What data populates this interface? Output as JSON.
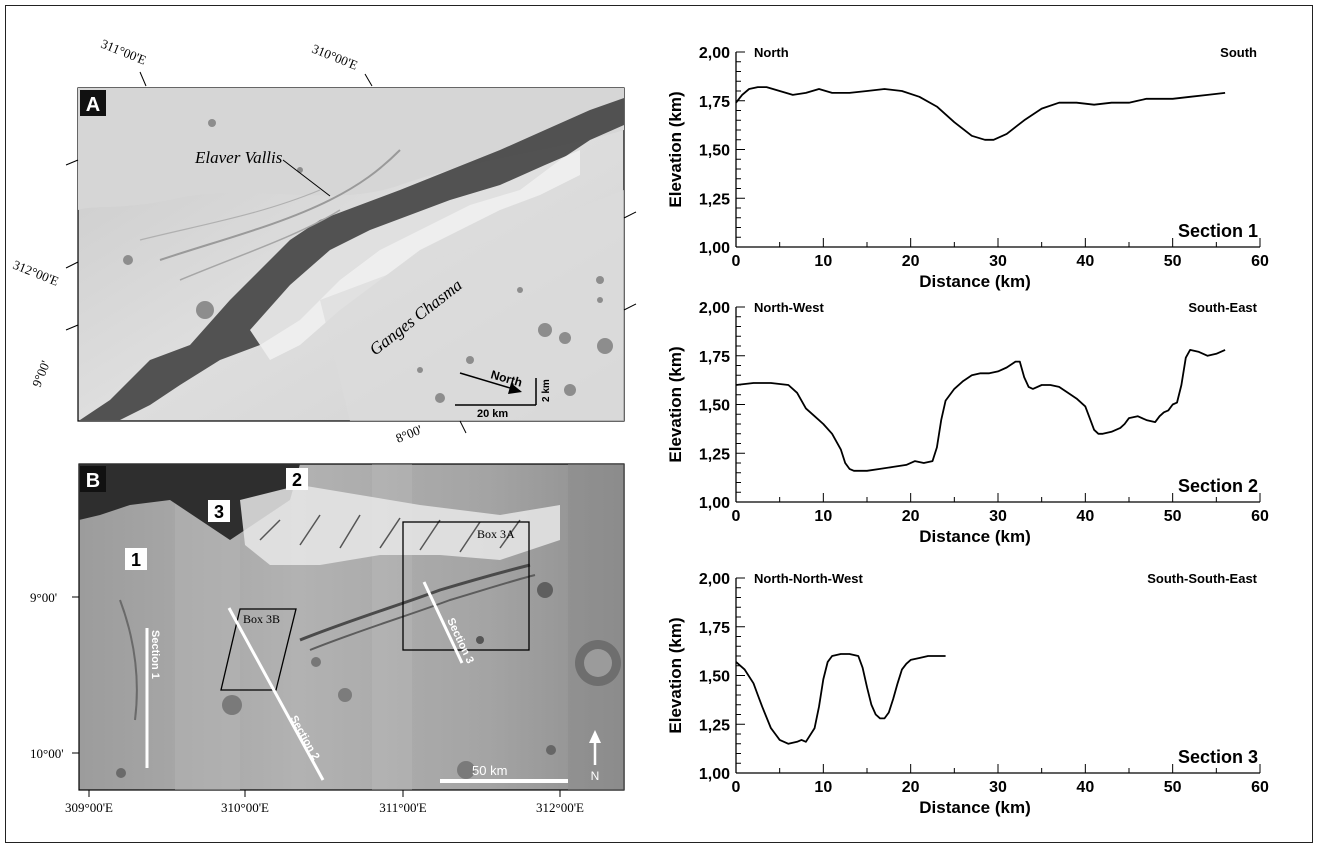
{
  "panel_a": {
    "label": "A",
    "lon_labels": [
      "311°00'E",
      "310°00'E",
      "312°00'E"
    ],
    "lat_labels": [
      "9°00'",
      "8°00'"
    ],
    "feature_labels": [
      "Elaver Vallis",
      "Ganges Chasma"
    ],
    "north_label": "North",
    "scale_horizontal": "20 km",
    "scale_vertical": "2 km"
  },
  "panel_b": {
    "label": "B",
    "site_labels": [
      "1",
      "2",
      "3"
    ],
    "box_labels": [
      "Box 3A",
      "Box 3B"
    ],
    "section_labels": [
      "Section 1",
      "Section 2",
      "Section 3"
    ],
    "lat_labels": [
      "9°00'",
      "10°00'"
    ],
    "lon_labels": [
      "309°00'E",
      "310°00'E",
      "311°00'E",
      "312°00'E"
    ],
    "scale_label": "50 km",
    "north_label": "N"
  },
  "colors": {
    "terrain_light": "#dcdcdc",
    "terrain_mid": "#a8a8a8",
    "terrain_dark": "#2a2a2a",
    "profile_line": "#000000"
  },
  "chart_data": [
    {
      "type": "line",
      "title": "Section 1",
      "xlabel": "Distance (km)",
      "ylabel": "Elevation (km)",
      "xlim": [
        0,
        60
      ],
      "ylim": [
        1.0,
        2.0
      ],
      "x_ticks": [
        "0",
        "10",
        "20",
        "30",
        "40",
        "50",
        "60"
      ],
      "y_ticks": [
        "1,00",
        "1,25",
        "1,50",
        "1,75",
        "2,00"
      ],
      "start_label": "North",
      "end_label": "South",
      "x": [
        0,
        0.7,
        1.5,
        2.5,
        3.5,
        5,
        6.5,
        8,
        9.5,
        11,
        13,
        15,
        17,
        19,
        21,
        23,
        25,
        27,
        28.5,
        29.5,
        31,
        33,
        35,
        37,
        39,
        41,
        43,
        44,
        45,
        46,
        47,
        48,
        50,
        52,
        54,
        56
      ],
      "y": [
        1.74,
        1.78,
        1.81,
        1.82,
        1.82,
        1.8,
        1.78,
        1.79,
        1.81,
        1.79,
        1.79,
        1.8,
        1.81,
        1.8,
        1.77,
        1.72,
        1.64,
        1.57,
        1.55,
        1.55,
        1.58,
        1.65,
        1.71,
        1.74,
        1.74,
        1.73,
        1.74,
        1.74,
        1.74,
        1.75,
        1.76,
        1.76,
        1.76,
        1.77,
        1.78,
        1.79
      ]
    },
    {
      "type": "line",
      "title": "Section 2",
      "xlabel": "Distance (km)",
      "ylabel": "Elevation (km)",
      "xlim": [
        0,
        60
      ],
      "ylim": [
        1.0,
        2.0
      ],
      "x_ticks": [
        "0",
        "10",
        "20",
        "30",
        "40",
        "50",
        "60"
      ],
      "y_ticks": [
        "1,00",
        "1,25",
        "1,50",
        "1,75",
        "2,00"
      ],
      "start_label": "North-West",
      "end_label": "South-East",
      "x": [
        0,
        2,
        4,
        6,
        7,
        8,
        9,
        10,
        11,
        12,
        12.5,
        13,
        13.5,
        14,
        15,
        16.5,
        18,
        19.5,
        20.5,
        21.5,
        22.5,
        23,
        23.5,
        24,
        25,
        26,
        27,
        28,
        29,
        30,
        31,
        32,
        32.5,
        33,
        33.5,
        34,
        35,
        36,
        37,
        38,
        39,
        40,
        40.5,
        41,
        41.5,
        42,
        43,
        44,
        44.5,
        45,
        46,
        47,
        48,
        48.5,
        49,
        49.5,
        50,
        50.5,
        51,
        51.5,
        52,
        53,
        54,
        55,
        56
      ],
      "y": [
        1.6,
        1.61,
        1.61,
        1.6,
        1.56,
        1.48,
        1.44,
        1.4,
        1.35,
        1.27,
        1.2,
        1.17,
        1.16,
        1.16,
        1.16,
        1.17,
        1.18,
        1.19,
        1.21,
        1.2,
        1.21,
        1.28,
        1.42,
        1.52,
        1.58,
        1.62,
        1.65,
        1.66,
        1.66,
        1.67,
        1.69,
        1.72,
        1.72,
        1.64,
        1.59,
        1.58,
        1.6,
        1.6,
        1.59,
        1.56,
        1.53,
        1.49,
        1.43,
        1.37,
        1.35,
        1.35,
        1.36,
        1.38,
        1.4,
        1.43,
        1.44,
        1.42,
        1.41,
        1.44,
        1.46,
        1.47,
        1.5,
        1.51,
        1.6,
        1.74,
        1.78,
        1.77,
        1.75,
        1.76,
        1.78
      ]
    },
    {
      "type": "line",
      "title": "Section 3",
      "xlabel": "Distance (km)",
      "ylabel": "Elevation (km)",
      "xlim": [
        0,
        60
      ],
      "ylim": [
        1.0,
        2.0
      ],
      "x_ticks": [
        "0",
        "10",
        "20",
        "30",
        "40",
        "50",
        "60"
      ],
      "y_ticks": [
        "1,00",
        "1,25",
        "1,50",
        "1,75",
        "2,00"
      ],
      "start_label": "North-North-West",
      "end_label": "South-South-East",
      "x": [
        0,
        1,
        2,
        2.5,
        3,
        4,
        4.5,
        5,
        6,
        7,
        7.5,
        8,
        9,
        9.5,
        10,
        10.5,
        11,
        12,
        13,
        14,
        14.5,
        15,
        15.5,
        16,
        16.5,
        17,
        17.5,
        18,
        18.5,
        19,
        19.5,
        20,
        21,
        22,
        23,
        24
      ],
      "y": [
        1.57,
        1.53,
        1.46,
        1.4,
        1.34,
        1.23,
        1.2,
        1.17,
        1.15,
        1.16,
        1.17,
        1.16,
        1.23,
        1.34,
        1.48,
        1.57,
        1.6,
        1.61,
        1.61,
        1.6,
        1.54,
        1.44,
        1.35,
        1.3,
        1.28,
        1.28,
        1.31,
        1.38,
        1.46,
        1.53,
        1.56,
        1.58,
        1.59,
        1.6,
        1.6,
        1.6
      ]
    }
  ]
}
